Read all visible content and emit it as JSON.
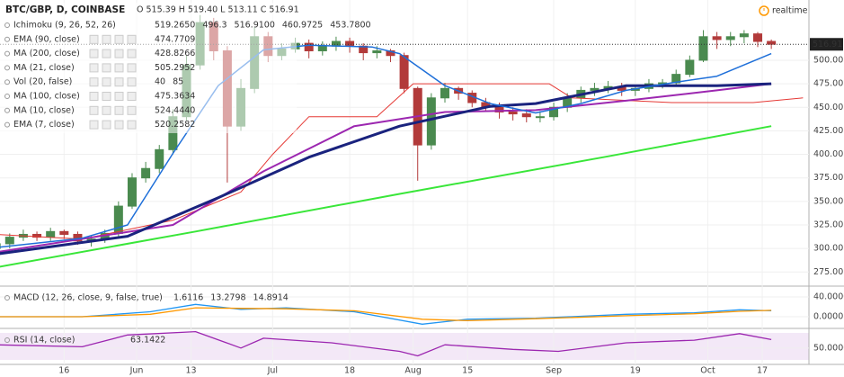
{
  "header": {
    "symbol": "BTC/GBP, D, COINBASE",
    "ohlc": "O 515.39 H 519.40 L 513.11 C 516.91",
    "status": "realtime"
  },
  "chart_data": [
    {
      "type": "candlestick",
      "up_color": "#4a8a4f",
      "down_color": "#b23a3a",
      "x": [
        1,
        4,
        7,
        10,
        13,
        16,
        19,
        22,
        25,
        28,
        31,
        34,
        37,
        40,
        43,
        46,
        49,
        52,
        55,
        58,
        61,
        64,
        67,
        70,
        73,
        76,
        79,
        82,
        85,
        88,
        91,
        94,
        97,
        100,
        103,
        106,
        109,
        112,
        115,
        118,
        121,
        124,
        127,
        130,
        133,
        136,
        139,
        142,
        145,
        148,
        151,
        154,
        157,
        160,
        163,
        166,
        169,
        172
      ],
      "open": [
        300,
        305,
        312,
        315,
        312,
        318,
        315,
        308,
        310,
        316,
        345,
        375,
        385,
        405,
        440,
        495,
        540,
        510,
        430,
        470,
        525,
        505,
        512,
        518,
        510,
        515,
        520,
        515,
        508,
        510,
        505,
        470,
        410,
        460,
        470,
        465,
        455,
        450,
        445,
        443,
        440,
        440,
        450,
        460,
        468,
        470,
        472,
        468,
        470,
        475,
        476,
        485,
        500,
        525,
        522,
        525,
        528,
        520
      ],
      "high": [
        310,
        316,
        320,
        318,
        322,
        320,
        318,
        314,
        320,
        350,
        380,
        392,
        410,
        448,
        505,
        548,
        545,
        515,
        480,
        535,
        530,
        518,
        524,
        522,
        520,
        525,
        524,
        518,
        515,
        512,
        508,
        472,
        465,
        476,
        472,
        468,
        460,
        455,
        450,
        448,
        446,
        455,
        465,
        472,
        476,
        478,
        476,
        474,
        480,
        480,
        490,
        505,
        532,
        530,
        530,
        532,
        530,
        522
      ],
      "low": [
        296,
        300,
        308,
        308,
        308,
        310,
        304,
        302,
        306,
        312,
        342,
        370,
        380,
        400,
        436,
        490,
        500,
        370,
        425,
        465,
        498,
        500,
        508,
        502,
        505,
        510,
        508,
        500,
        502,
        498,
        465,
        372,
        405,
        455,
        458,
        450,
        445,
        438,
        436,
        434,
        434,
        436,
        445,
        455,
        462,
        465,
        462,
        462,
        466,
        470,
        472,
        482,
        498,
        512,
        515,
        518,
        514,
        512
      ],
      "close": [
        305,
        312,
        315,
        312,
        318,
        315,
        308,
        310,
        316,
        345,
        375,
        385,
        405,
        440,
        495,
        540,
        510,
        430,
        470,
        525,
        505,
        512,
        518,
        510,
        515,
        520,
        515,
        508,
        510,
        505,
        470,
        410,
        460,
        470,
        465,
        455,
        450,
        445,
        443,
        440,
        440,
        450,
        460,
        468,
        470,
        472,
        468,
        470,
        475,
        476,
        485,
        500,
        525,
        522,
        525,
        528,
        520,
        517
      ],
      "series": [
        {
          "color": "#39e639",
          "width": 2,
          "x": [
            1,
            45,
            90,
            135,
            172
          ],
          "values": [
            280,
            318,
            358,
            397,
            430
          ]
        },
        {
          "color": "#e53935",
          "width": 1,
          "x": [
            1,
            20,
            40,
            55,
            62,
            70,
            85,
            93,
            123,
            128,
            150,
            168,
            179
          ],
          "values": [
            315,
            310,
            330,
            360,
            400,
            440,
            440,
            475,
            475,
            460,
            455,
            455,
            460
          ]
        },
        {
          "color": "#9c27b0",
          "width": 2,
          "x": [
            1,
            40,
            60,
            80,
            100,
            120,
            140,
            160,
            172
          ],
          "values": [
            296,
            325,
            382,
            430,
            445,
            447,
            457,
            468,
            475
          ]
        },
        {
          "color": "#1a237e",
          "width": 3,
          "x": [
            1,
            30,
            50,
            70,
            90,
            110,
            120,
            140,
            160,
            172
          ],
          "values": [
            294,
            313,
            354,
            397,
            430,
            451,
            454,
            473,
            473,
            475
          ]
        },
        {
          "color": "#1e6fd9",
          "width": 1.5,
          "x": [
            1,
            20,
            30,
            40,
            50,
            60,
            70,
            84,
            90,
            100,
            110,
            120,
            130,
            140,
            150,
            160,
            172
          ],
          "values": [
            301,
            311,
            325,
            401,
            473,
            511,
            516,
            514,
            507,
            473,
            454,
            444,
            454,
            468,
            476,
            483,
            507
          ]
        }
      ],
      "last_price": 516.91,
      "xlim": [
        1.86,
        180.3
      ],
      "xticks": [
        16,
        {
          "value": 32,
          "label": "Jun"
        },
        {
          "value": 44,
          "label": "13"
        },
        {
          "value": 62,
          "label": "Jul"
        },
        {
          "value": 79,
          "label": "18"
        },
        {
          "value": 93,
          "label": "Aug"
        },
        {
          "value": 105,
          "label": "15"
        },
        {
          "value": 124,
          "label": "Sep"
        },
        {
          "value": 142,
          "label": "19"
        },
        {
          "value": 158,
          "label": "Oct"
        },
        {
          "value": 170,
          "label": "17"
        }
      ],
      "ylim": [
        260,
        564
      ],
      "yticks": [
        {
          "value": 275,
          "label": "275.00"
        },
        {
          "value": 300,
          "label": "300.00"
        },
        {
          "value": 325,
          "label": "325.00"
        },
        {
          "value": 350,
          "label": "350.00"
        },
        {
          "value": 375,
          "label": "375.00"
        },
        {
          "value": 400,
          "label": "400.00"
        },
        {
          "value": 425,
          "label": "425.00"
        },
        {
          "value": 450,
          "label": "450.00"
        },
        {
          "value": 475,
          "label": "475.00"
        },
        {
          "value": 500,
          "label": "500.00"
        }
      ],
      "legend": [
        {
          "name": "Ichimoku (9, 26, 52, 26)",
          "values": [
            "519.2650",
            "496.3",
            "516.9100",
            "460.9725",
            "453.7800"
          ],
          "colors": [
            "#2962ff",
            "#e53935",
            "#2e7d32",
            "#43a047",
            "#e53935"
          ]
        },
        {
          "name": "EMA (90, close)",
          "values": [
            "474.7709"
          ],
          "colors": [
            "#1a237e"
          ]
        },
        {
          "name": "MA (200, close)",
          "values": [
            "428.8266"
          ],
          "colors": [
            "#2eb82e"
          ]
        },
        {
          "name": "MA (21, close)",
          "values": [
            "505.2952"
          ],
          "colors": [
            "#1e6fd9"
          ]
        },
        {
          "name": "Vol (20, false)",
          "values": [
            "40",
            "85"
          ],
          "colors": [
            "#2e9b2e",
            "#2e9b2e"
          ]
        },
        {
          "name": "MA (100, close)",
          "values": [
            "475.3634"
          ],
          "colors": [
            "#9c27b0"
          ]
        },
        {
          "name": "MA (10, close)",
          "values": [
            "524.4440"
          ],
          "colors": [
            "#333333"
          ]
        },
        {
          "name": "EMA (7, close)",
          "values": [
            "520.2582"
          ],
          "colors": [
            "#2962ff"
          ]
        }
      ]
    },
    {
      "type": "line",
      "series": [
        {
          "color": "#2196f3",
          "x": [
            1,
            20,
            35,
            45,
            55,
            65,
            80,
            95,
            105,
            120,
            140,
            155,
            165,
            172
          ],
          "values": [
            0,
            0,
            10,
            25,
            15,
            18,
            10,
            -15,
            -5,
            -3,
            5,
            8,
            14,
            12
          ]
        },
        {
          "color": "#ff9800",
          "x": [
            1,
            20,
            35,
            45,
            55,
            65,
            80,
            95,
            105,
            120,
            140,
            155,
            165,
            172
          ],
          "values": [
            0,
            0,
            5,
            18,
            17,
            16,
            12,
            -5,
            -8,
            -4,
            2,
            6,
            11,
            13
          ]
        }
      ],
      "ylim": [
        -23.6,
        61.8
      ],
      "yticks": [
        {
          "value": 40,
          "label": "40.0000"
        },
        {
          "value": 0,
          "label": "0.0000"
        }
      ],
      "legend": [
        {
          "name": "MACD (12, 26, close, 9, false, true)",
          "values": [
            "1.6116",
            "13.2798",
            "14.8914"
          ],
          "colors": [
            "#2e9b2e",
            "#2196f3",
            "#ff9800"
          ]
        }
      ]
    },
    {
      "type": "line",
      "series": [
        {
          "color": "#9c27b0",
          "x": [
            1,
            20,
            30,
            45,
            55,
            60,
            75,
            90,
            94,
            100,
            115,
            125,
            140,
            155,
            165,
            172
          ],
          "values": [
            55,
            52,
            70,
            75,
            50,
            65,
            58,
            45,
            38,
            55,
            48,
            45,
            58,
            62,
            72,
            63
          ]
        }
      ],
      "ylim": [
        25,
        80
      ],
      "yticks": [
        {
          "value": 50,
          "label": "50.0000"
        }
      ],
      "legend": [
        {
          "name": "RSI (14, close)",
          "values": [
            "63.1422"
          ],
          "colors": [
            "#9c27b0"
          ]
        }
      ]
    }
  ]
}
